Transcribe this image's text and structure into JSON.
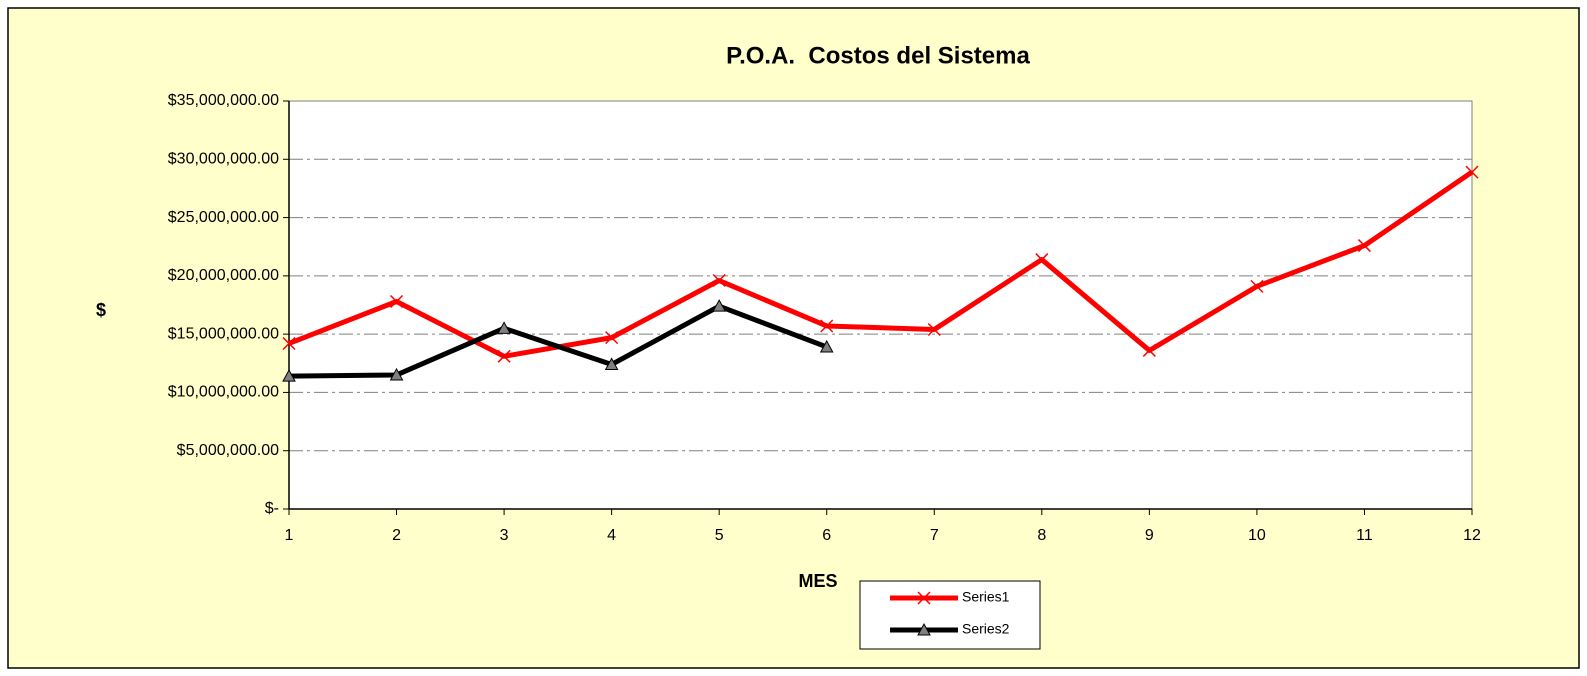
{
  "chart_data": {
    "type": "line",
    "title": "P.O.A.  Costos del Sistema",
    "x_label": "MES",
    "y_label": "$",
    "x": [
      1,
      2,
      3,
      4,
      5,
      6,
      7,
      8,
      9,
      10,
      11,
      12
    ],
    "series": [
      {
        "name": "Series1",
        "color": "#ff0000",
        "marker": "x",
        "values": [
          14200000,
          17800000,
          13100000,
          14700000,
          19600000,
          15700000,
          15400000,
          21400000,
          13600000,
          19100000,
          22600000,
          28900000
        ]
      },
      {
        "name": "Series2",
        "color": "#000000",
        "marker": "triangle",
        "values": [
          11400000,
          11500000,
          15500000,
          12400000,
          17400000,
          13900000,
          null,
          null,
          null,
          null,
          null,
          null
        ]
      }
    ],
    "xlim": [
      1,
      12
    ],
    "xticks": [
      1,
      2,
      3,
      4,
      5,
      6,
      7,
      8,
      9,
      10,
      11,
      12
    ],
    "ylim": [
      0,
      35000000
    ],
    "yticks": [
      {
        "value": 0,
        "label": "$-"
      },
      {
        "value": 5000000,
        "label": "$5,000,000.00"
      },
      {
        "value": 10000000,
        "label": "$10,000,000.00"
      },
      {
        "value": 15000000,
        "label": "$15,000,000.00"
      },
      {
        "value": 20000000,
        "label": "$20,000,000.00"
      },
      {
        "value": 25000000,
        "label": "$25,000,000.00"
      },
      {
        "value": 30000000,
        "label": "$30,000,000.00"
      },
      {
        "value": 35000000,
        "label": "$35,000,000.00"
      }
    ],
    "grid": true,
    "legend": "bottom"
  }
}
